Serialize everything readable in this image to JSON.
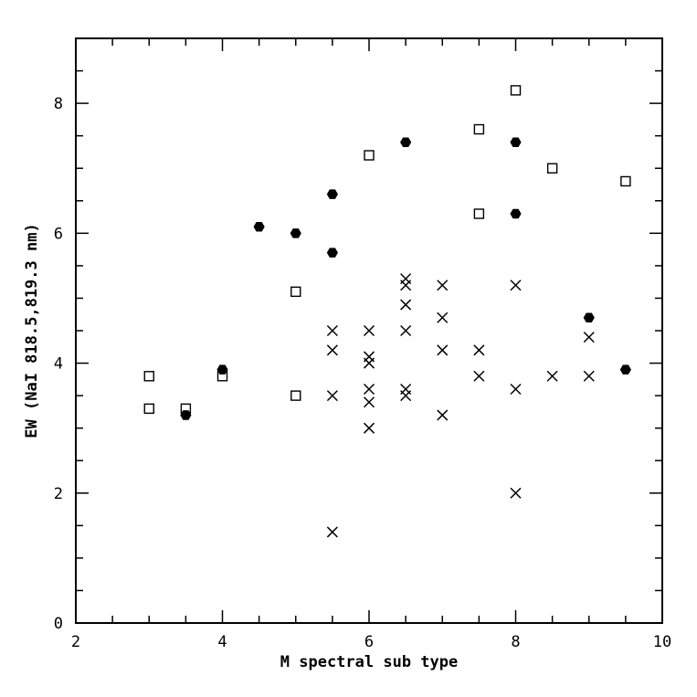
{
  "chart_data": {
    "type": "scatter",
    "title": "",
    "xlabel": "M spectral sub type",
    "ylabel": "EW (NaI 818.5,819.3 nm)",
    "xlim": [
      2,
      10
    ],
    "ylim": [
      0,
      9
    ],
    "xticks": [
      2,
      4,
      6,
      8,
      10
    ],
    "yticks": [
      0,
      2,
      4,
      6,
      8
    ],
    "x_minor_step": 0.5,
    "y_minor_step": 0.5,
    "grid": false,
    "series": [
      {
        "marker": "filled-hexagon",
        "color": "#000000",
        "points": [
          [
            3.5,
            3.2
          ],
          [
            4.0,
            3.9
          ],
          [
            4.5,
            6.1
          ],
          [
            5.0,
            6.0
          ],
          [
            5.5,
            6.6
          ],
          [
            5.5,
            5.7
          ],
          [
            6.5,
            7.4
          ],
          [
            8.0,
            7.4
          ],
          [
            8.0,
            6.3
          ],
          [
            9.0,
            4.7
          ],
          [
            9.5,
            3.9
          ]
        ]
      },
      {
        "marker": "open-square",
        "color": "#000000",
        "points": [
          [
            3.0,
            3.8
          ],
          [
            3.0,
            3.3
          ],
          [
            3.5,
            3.3
          ],
          [
            4.0,
            3.8
          ],
          [
            5.0,
            5.1
          ],
          [
            5.0,
            3.5
          ],
          [
            6.0,
            7.2
          ],
          [
            7.5,
            7.6
          ],
          [
            7.5,
            6.3
          ],
          [
            8.0,
            8.2
          ],
          [
            8.5,
            7.0
          ],
          [
            9.5,
            6.8
          ]
        ]
      },
      {
        "marker": "cross",
        "color": "#000000",
        "points": [
          [
            5.5,
            4.5
          ],
          [
            5.5,
            4.2
          ],
          [
            5.5,
            3.5
          ],
          [
            5.5,
            1.4
          ],
          [
            6.0,
            4.5
          ],
          [
            6.0,
            4.1
          ],
          [
            6.0,
            4.0
          ],
          [
            6.0,
            3.6
          ],
          [
            6.0,
            3.4
          ],
          [
            6.0,
            3.0
          ],
          [
            6.5,
            5.3
          ],
          [
            6.5,
            5.2
          ],
          [
            6.5,
            4.9
          ],
          [
            6.5,
            4.5
          ],
          [
            6.5,
            3.6
          ],
          [
            6.5,
            3.5
          ],
          [
            7.0,
            5.2
          ],
          [
            7.0,
            4.7
          ],
          [
            7.0,
            4.2
          ],
          [
            7.0,
            3.2
          ],
          [
            7.5,
            4.2
          ],
          [
            7.5,
            3.8
          ],
          [
            8.0,
            5.2
          ],
          [
            8.0,
            3.6
          ],
          [
            8.0,
            2.0
          ],
          [
            8.5,
            3.8
          ],
          [
            9.0,
            4.4
          ],
          [
            9.0,
            3.8
          ]
        ]
      }
    ]
  }
}
